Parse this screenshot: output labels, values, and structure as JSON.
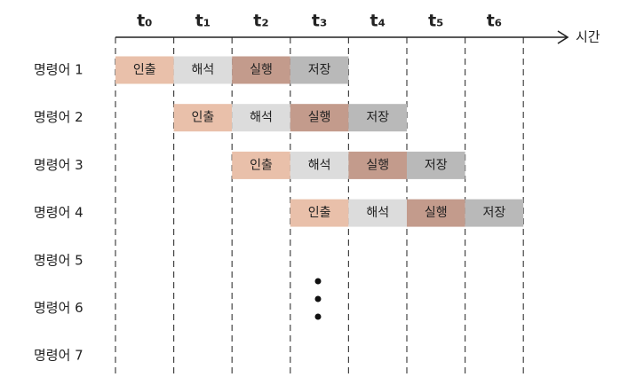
{
  "header": {
    "times": [
      "t₀",
      "t₁",
      "t₂",
      "t₃",
      "t₄",
      "t₅",
      "t₆"
    ],
    "axis_label": "시간"
  },
  "rows": [
    {
      "label": "명령어 1",
      "cells": [
        "인출",
        "해석",
        "실행",
        "저장"
      ]
    },
    {
      "label": "명령어 2",
      "cells": [
        "인출",
        "해석",
        "실행",
        "저장"
      ]
    },
    {
      "label": "명령어 3",
      "cells": [
        "인출",
        "해석",
        "실행",
        "저장"
      ]
    },
    {
      "label": "명령어 4",
      "cells": [
        "인출",
        "해석",
        "실행",
        "저장"
      ]
    },
    {
      "label": "명령어 5",
      "cells": []
    },
    {
      "label": "명령어 6",
      "cells": []
    },
    {
      "label": "명령어 7",
      "cells": []
    }
  ]
}
